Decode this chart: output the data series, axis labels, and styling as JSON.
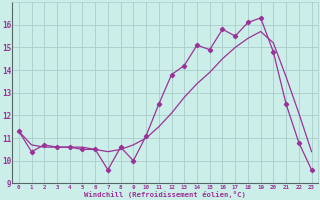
{
  "bg_color": "#cceee8",
  "grid_color": "#aacccc",
  "line_color": "#993399",
  "xlim": [
    -0.5,
    23.5
  ],
  "ylim": [
    9,
    17
  ],
  "xticks": [
    0,
    1,
    2,
    3,
    4,
    5,
    6,
    7,
    8,
    9,
    10,
    11,
    12,
    13,
    14,
    15,
    16,
    17,
    18,
    19,
    20,
    21,
    22,
    23
  ],
  "yticks": [
    9,
    10,
    11,
    12,
    13,
    14,
    15,
    16
  ],
  "xlabel": "Windchill (Refroidissement éolien,°C)",
  "line1_x": [
    0,
    1,
    2,
    3,
    4,
    5,
    6,
    7,
    8,
    9,
    10,
    11,
    12,
    13,
    14,
    15,
    16,
    17,
    18,
    19,
    20,
    21,
    22,
    23
  ],
  "line1_y": [
    11.3,
    10.4,
    10.7,
    10.6,
    10.6,
    10.5,
    10.5,
    9.6,
    10.6,
    10.0,
    11.1,
    12.5,
    13.8,
    14.2,
    15.1,
    14.9,
    15.8,
    15.5,
    16.1,
    16.3,
    14.8,
    12.5,
    10.8,
    9.6
  ],
  "line2_x": [
    0,
    1,
    2,
    3,
    4,
    5,
    6,
    7,
    8,
    9,
    10,
    11,
    12,
    13,
    14,
    15,
    16,
    17,
    18,
    19,
    20,
    21,
    22,
    23
  ],
  "line2_y": [
    11.3,
    10.7,
    10.6,
    10.6,
    10.6,
    10.6,
    10.5,
    10.4,
    10.5,
    10.7,
    11.0,
    11.5,
    12.1,
    12.8,
    13.4,
    13.9,
    14.5,
    15.0,
    15.4,
    15.7,
    15.2,
    13.7,
    12.1,
    10.4
  ]
}
